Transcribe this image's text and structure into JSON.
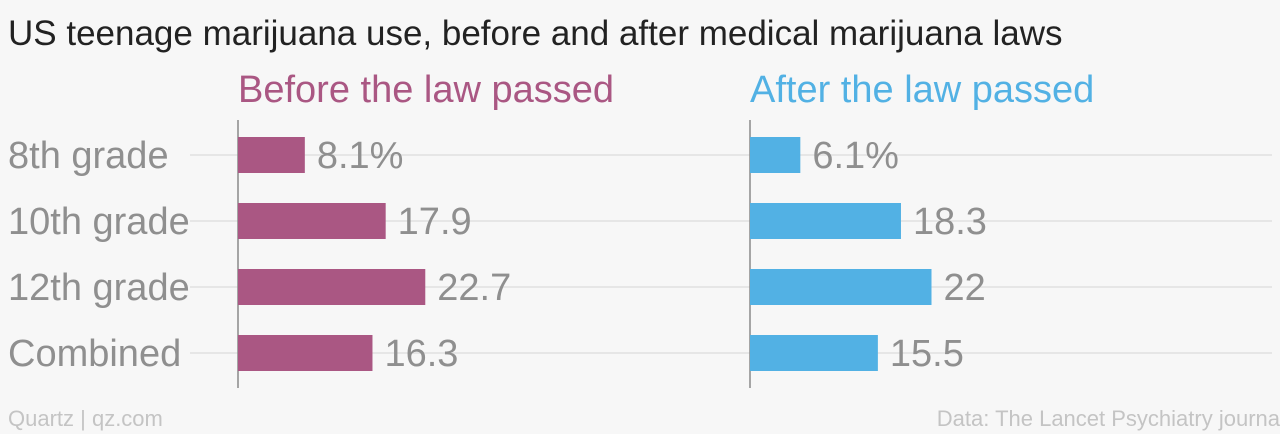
{
  "colors": {
    "before": "#aa5783",
    "after": "#52b1e4",
    "background": "#f7f7f7"
  },
  "footer": {
    "source_left": "Quartz | qz.com",
    "source_right": "Data: The Lancet Psychiatry journa"
  },
  "chart_data": {
    "type": "bar",
    "title": "US teenage marijuana use, before and after medical marijuana laws",
    "categories": [
      "8th grade",
      "10th grade",
      "12th grade",
      "Combined"
    ],
    "series": [
      {
        "name": "Before the law passed",
        "values": [
          8.1,
          17.9,
          22.7,
          16.3
        ],
        "labels": [
          "8.1%",
          "17.9",
          "22.7",
          "16.3"
        ]
      },
      {
        "name": "After the law passed",
        "values": [
          6.1,
          18.3,
          22,
          15.5
        ],
        "labels": [
          "6.1%",
          "18.3",
          "22",
          "15.5"
        ]
      }
    ],
    "orientation": "horizontal",
    "xlim": [
      0,
      40
    ],
    "grid": true,
    "legend": "panel-titles"
  }
}
